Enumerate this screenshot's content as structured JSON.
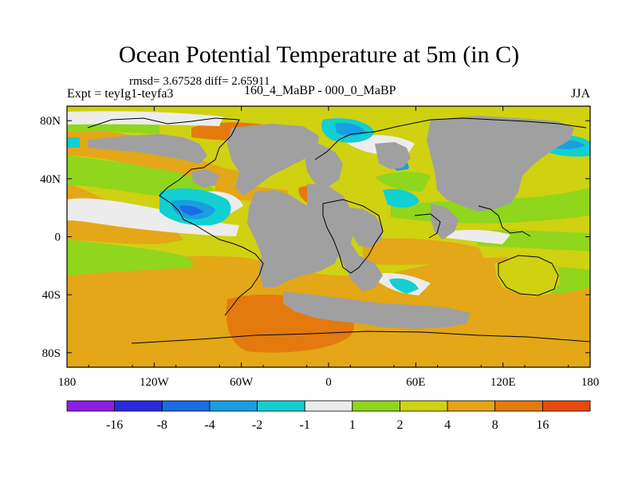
{
  "chart_data": {
    "type": "heatmap",
    "title": "Ocean Potential Temperature at 5m (in C)",
    "stats_line": "rmsd= 3.67528 diff= 2.65911",
    "experiment": "Expt = teyIg1-teyfa3",
    "period": "160_4_MaBP - 000_0_MaBP",
    "season": "JJA",
    "x_ticks": [
      "180",
      "120W",
      "60W",
      "0",
      "60E",
      "120E",
      "180"
    ],
    "y_ticks": [
      "80N",
      "40N",
      "0",
      "40S",
      "80S"
    ],
    "xlim": [
      -180,
      180
    ],
    "ylim": [
      -90,
      90
    ],
    "colorbar": {
      "colors": [
        "#8c1ee6",
        "#2a2ade",
        "#1a6de6",
        "#1a9ee0",
        "#12cfd2",
        "#ececec",
        "#8fd61c",
        "#cfd111",
        "#e3a717",
        "#e47a0d",
        "#e84a0b"
      ],
      "labels": [
        "-16",
        "-8",
        "-4",
        "-2",
        "-1",
        "1",
        "2",
        "4",
        "8",
        "16"
      ]
    },
    "land_color": "#a0a0a0"
  }
}
